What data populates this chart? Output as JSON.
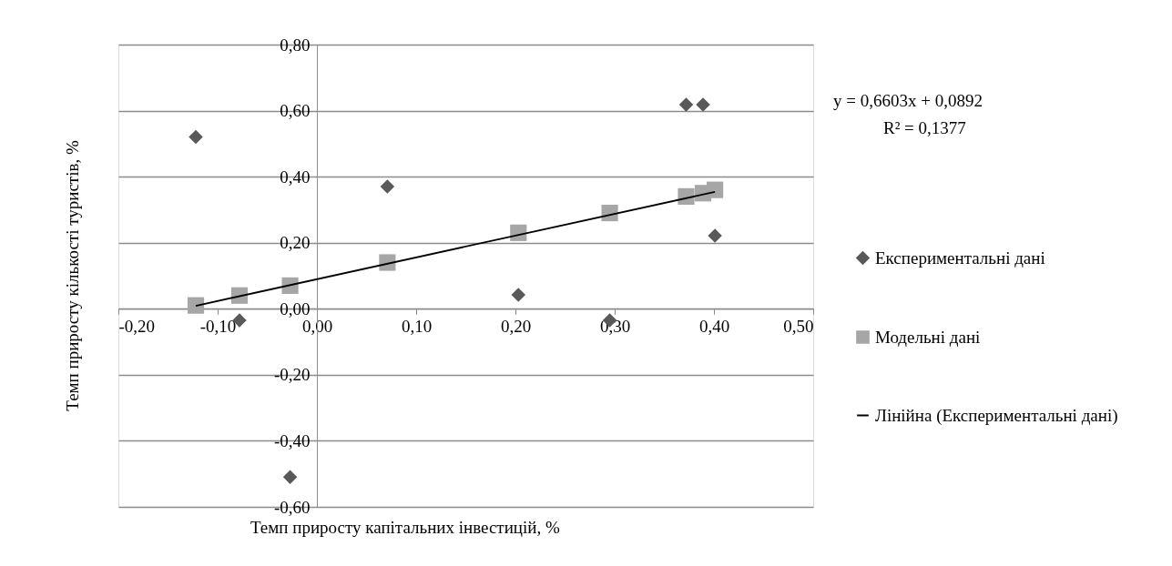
{
  "chart_data": {
    "type": "scatter",
    "xlabel": "Темп приросту капітальних інвестицій, %",
    "ylabel": "Темп приросту кількості туристів, %",
    "xlim": [
      -0.2,
      0.5
    ],
    "ylim": [
      -0.6,
      0.8
    ],
    "xticks": [
      {
        "value": -0.2,
        "label": "-0,20"
      },
      {
        "value": -0.1,
        "label": "-0,10"
      },
      {
        "value": 0,
        "label": "0,00"
      },
      {
        "value": 0.1,
        "label": "0,10"
      },
      {
        "value": 0.2,
        "label": "0,20"
      },
      {
        "value": 0.3,
        "label": "0,30"
      },
      {
        "value": 0.4,
        "label": "0,40"
      },
      {
        "value": 0.5,
        "label": "0,50"
      }
    ],
    "yticks": [
      {
        "value": -0.6,
        "label": "-0,60"
      },
      {
        "value": -0.4,
        "label": "-0,40"
      },
      {
        "value": -0.2,
        "label": "-0,20"
      },
      {
        "value": 0,
        "label": "0,00"
      },
      {
        "value": 0.2,
        "label": "0,20"
      },
      {
        "value": 0.4,
        "label": "0,40"
      },
      {
        "value": 0.6,
        "label": "0,60"
      },
      {
        "value": 0.8,
        "label": "0,80"
      }
    ],
    "grid": "y",
    "legend": "right",
    "annotations": [
      "y = 0,6603x + 0,0892",
      "R² = 0,1377"
    ],
    "series": [
      {
        "name": "Експериментальні дані",
        "type": "scatter",
        "marker": "diamond",
        "color": "#595959",
        "x": [
          -0.122,
          -0.078,
          -0.027,
          0.071,
          0.203,
          0.295,
          0.372,
          0.389,
          0.401
        ],
        "values": [
          0.52,
          -0.035,
          -0.51,
          0.37,
          0.042,
          -0.035,
          0.618,
          0.618,
          0.221
        ]
      },
      {
        "name": "Модельні дані",
        "type": "scatter",
        "marker": "square",
        "color": "#a6a6a6",
        "x": [
          -0.122,
          -0.078,
          -0.027,
          0.071,
          0.203,
          0.295,
          0.372,
          0.389,
          0.401
        ],
        "values": [
          0.01,
          0.04,
          0.07,
          0.14,
          0.23,
          0.29,
          0.34,
          0.35,
          0.36
        ]
      },
      {
        "name": "Лінійна (Експериментальні дані)",
        "type": "line",
        "marker": "none",
        "line_style": "solid",
        "color": "#000000",
        "x": [
          -0.122,
          0.401
        ],
        "values": [
          0.009,
          0.354
        ]
      }
    ]
  }
}
